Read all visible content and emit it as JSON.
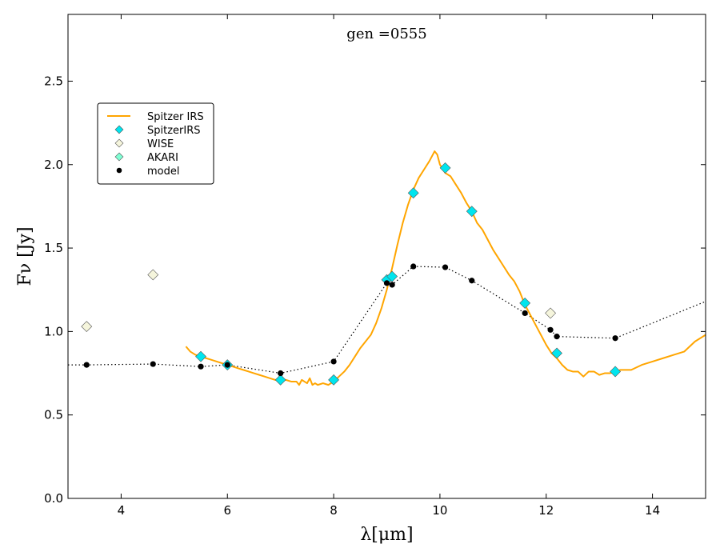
{
  "chart_data": {
    "type": "scatter",
    "title": "gen =0555",
    "xlabel": "λ[μm]",
    "ylabel": "Fν [Jy]",
    "xlim": [
      3,
      15
    ],
    "ylim": [
      0,
      2.9
    ],
    "xticks": [
      4,
      6,
      8,
      10,
      12,
      14
    ],
    "yticks": [
      0.0,
      0.5,
      1.0,
      1.5,
      2.0,
      2.5
    ],
    "grid": false,
    "legend_position": "upper-left",
    "legend": [
      {
        "label": "Spitzer IRS",
        "kind": "line",
        "color": "#ffa500"
      },
      {
        "label": "SpitzerIRS",
        "kind": "diamond",
        "color": "#00e5ee"
      },
      {
        "label": "WISE",
        "kind": "diamond",
        "color": "#f5f5dc"
      },
      {
        "label": "AKARI",
        "kind": "diamond",
        "color": "#7fffd4"
      },
      {
        "label": "model",
        "kind": "dot",
        "color": "#000000"
      }
    ],
    "series": [
      {
        "name": "Spitzer IRS",
        "kind": "line",
        "color": "#ffa500",
        "x": [
          5.22,
          5.3,
          5.4,
          5.5,
          5.6,
          5.7,
          5.8,
          5.9,
          6.0,
          6.1,
          6.2,
          6.3,
          6.4,
          6.5,
          6.6,
          6.7,
          6.8,
          6.9,
          7.0,
          7.1,
          7.2,
          7.3,
          7.35,
          7.4,
          7.5,
          7.55,
          7.6,
          7.65,
          7.7,
          7.8,
          7.9,
          8.0,
          8.1,
          8.2,
          8.3,
          8.4,
          8.5,
          8.6,
          8.7,
          8.8,
          8.9,
          9.0,
          9.1,
          9.2,
          9.3,
          9.4,
          9.5,
          9.6,
          9.7,
          9.8,
          9.9,
          9.95,
          10.0,
          10.1,
          10.2,
          10.3,
          10.4,
          10.5,
          10.6,
          10.7,
          10.8,
          10.9,
          11.0,
          11.1,
          11.2,
          11.3,
          11.4,
          11.5,
          11.6,
          11.7,
          11.8,
          11.9,
          12.0,
          12.1,
          12.2,
          12.3,
          12.4,
          12.5,
          12.6,
          12.7,
          12.8,
          12.9,
          13.0,
          13.1,
          13.2,
          13.3,
          13.4,
          13.5,
          13.6,
          13.8,
          14.0,
          14.2,
          14.4,
          14.6,
          14.8,
          15.0
        ],
        "y": [
          0.91,
          0.88,
          0.86,
          0.85,
          0.84,
          0.83,
          0.82,
          0.81,
          0.8,
          0.79,
          0.78,
          0.77,
          0.76,
          0.75,
          0.74,
          0.73,
          0.72,
          0.71,
          0.71,
          0.71,
          0.7,
          0.7,
          0.68,
          0.71,
          0.69,
          0.72,
          0.68,
          0.69,
          0.68,
          0.69,
          0.68,
          0.7,
          0.73,
          0.76,
          0.8,
          0.85,
          0.9,
          0.94,
          0.98,
          1.05,
          1.14,
          1.25,
          1.38,
          1.52,
          1.65,
          1.76,
          1.85,
          1.92,
          1.97,
          2.02,
          2.08,
          2.06,
          2.0,
          1.95,
          1.93,
          1.88,
          1.83,
          1.77,
          1.72,
          1.65,
          1.61,
          1.55,
          1.49,
          1.44,
          1.39,
          1.34,
          1.3,
          1.24,
          1.16,
          1.1,
          1.04,
          0.98,
          0.92,
          0.87,
          0.84,
          0.8,
          0.77,
          0.76,
          0.76,
          0.73,
          0.76,
          0.76,
          0.74,
          0.75,
          0.75,
          0.76,
          0.77,
          0.77,
          0.77,
          0.8,
          0.82,
          0.84,
          0.86,
          0.88,
          0.94,
          0.98
        ]
      },
      {
        "name": "SpitzerIRS",
        "kind": "diamond",
        "color": "#00e5ee",
        "x": [
          5.5,
          6.0,
          7.0,
          8.0,
          9.0,
          9.1,
          9.5,
          10.1,
          10.6,
          11.6,
          12.2,
          13.3
        ],
        "y": [
          0.85,
          0.8,
          0.71,
          0.71,
          1.31,
          1.33,
          1.83,
          1.98,
          1.72,
          1.17,
          0.87,
          0.76
        ]
      },
      {
        "name": "WISE",
        "kind": "diamond",
        "color": "#f5f5dc",
        "x": [
          3.35,
          4.6,
          12.08
        ],
        "y": [
          1.03,
          1.34,
          1.11
        ]
      },
      {
        "name": "AKARI",
        "kind": "diamond",
        "color": "#7fffd4",
        "x": [],
        "y": []
      },
      {
        "name": "model",
        "kind": "dot",
        "color": "#000000",
        "x": [
          3.35,
          4.6,
          5.5,
          6.0,
          7.0,
          8.0,
          9.0,
          9.1,
          9.5,
          10.1,
          10.6,
          11.6,
          12.08,
          12.2,
          13.3
        ],
        "y": [
          0.8,
          0.805,
          0.79,
          0.8,
          0.75,
          0.82,
          1.29,
          1.28,
          1.39,
          1.385,
          1.305,
          1.11,
          1.01,
          0.97,
          0.96
        ]
      },
      {
        "name": "model-curve",
        "kind": "dotted-line",
        "color": "#000000",
        "x": [
          3.0,
          3.35,
          4.6,
          5.5,
          6.0,
          7.0,
          8.0,
          9.0,
          9.1,
          9.5,
          10.1,
          10.6,
          11.6,
          12.08,
          12.2,
          13.3,
          15.0
        ],
        "y": [
          0.8,
          0.8,
          0.805,
          0.79,
          0.8,
          0.75,
          0.82,
          1.29,
          1.28,
          1.39,
          1.385,
          1.305,
          1.11,
          1.01,
          0.97,
          0.96,
          1.18
        ]
      }
    ]
  }
}
